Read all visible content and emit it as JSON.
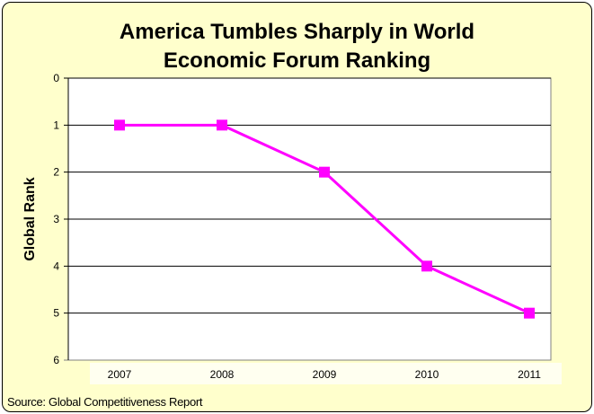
{
  "chart_data": {
    "type": "line",
    "title": "America Tumbles Sharply in World Economic Forum Ranking",
    "title_lines": [
      "America Tumbles Sharply in World",
      "Economic Forum Ranking"
    ],
    "xlabel": "",
    "ylabel": "Global Rank",
    "categories": [
      "2007",
      "2008",
      "2009",
      "2010",
      "2011"
    ],
    "values": [
      1,
      1,
      2,
      4,
      5
    ],
    "ylim": [
      0,
      6
    ],
    "y_inverted": true,
    "yticks": [
      "0",
      "1",
      "2",
      "3",
      "4",
      "5",
      "6"
    ],
    "grid": true,
    "legend": "none",
    "marker": "square",
    "series_color": "#FF00FF",
    "background_color": "#FFFFCC",
    "source": "Source: Global Competitiveness Report"
  }
}
